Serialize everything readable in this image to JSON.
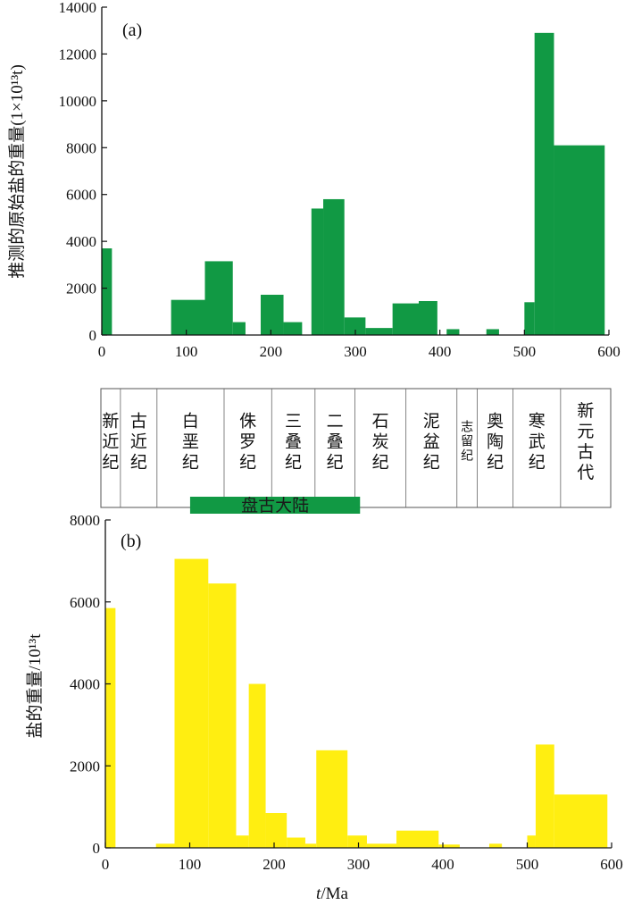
{
  "chart_data": [
    {
      "type": "bar",
      "panel_label": "(a)",
      "ylabel": "推测的原始盐的重量(1×10¹³t)",
      "xlabel": "",
      "xlim": [
        0,
        600
      ],
      "ylim": [
        0,
        14000
      ],
      "x_ticks": [
        0,
        100,
        200,
        300,
        400,
        500,
        600
      ],
      "y_ticks": [
        0,
        2000,
        4000,
        6000,
        8000,
        10000,
        12000,
        14000
      ],
      "color": "#119944",
      "grid": false,
      "bars": [
        {
          "x0": 0,
          "x1": 12,
          "value": 3700
        },
        {
          "x0": 82,
          "x1": 122,
          "value": 1500
        },
        {
          "x0": 122,
          "x1": 155,
          "value": 3150
        },
        {
          "x0": 155,
          "x1": 170,
          "value": 550
        },
        {
          "x0": 188,
          "x1": 215,
          "value": 1720
        },
        {
          "x0": 215,
          "x1": 237,
          "value": 550
        },
        {
          "x0": 248,
          "x1": 262,
          "value": 5400
        },
        {
          "x0": 262,
          "x1": 287,
          "value": 5800
        },
        {
          "x0": 287,
          "x1": 312,
          "value": 750
        },
        {
          "x0": 312,
          "x1": 344,
          "value": 300
        },
        {
          "x0": 344,
          "x1": 375,
          "value": 1350
        },
        {
          "x0": 375,
          "x1": 397,
          "value": 1450
        },
        {
          "x0": 408,
          "x1": 423,
          "value": 250
        },
        {
          "x0": 455,
          "x1": 470,
          "value": 250
        },
        {
          "x0": 500,
          "x1": 512,
          "value": 1400
        },
        {
          "x0": 512,
          "x1": 535,
          "value": 12900
        },
        {
          "x0": 535,
          "x1": 595,
          "value": 8100
        }
      ]
    },
    {
      "type": "bar",
      "panel_label": "(b)",
      "ylabel": "盐的重量/10¹³t",
      "xlabel": "t/Ma",
      "xlim": [
        0,
        600
      ],
      "ylim": [
        0,
        8000
      ],
      "x_ticks": [
        0,
        100,
        200,
        300,
        400,
        500,
        600
      ],
      "y_ticks": [
        0,
        2000,
        4000,
        6000,
        8000
      ],
      "color": "#ffee11",
      "grid": false,
      "bars": [
        {
          "x0": 0,
          "x1": 12,
          "value": 5850
        },
        {
          "x0": 60,
          "x1": 82,
          "value": 100
        },
        {
          "x0": 82,
          "x1": 122,
          "value": 7050
        },
        {
          "x0": 122,
          "x1": 155,
          "value": 6450
        },
        {
          "x0": 155,
          "x1": 170,
          "value": 300
        },
        {
          "x0": 170,
          "x1": 190,
          "value": 4000
        },
        {
          "x0": 190,
          "x1": 215,
          "value": 850
        },
        {
          "x0": 215,
          "x1": 237,
          "value": 250
        },
        {
          "x0": 237,
          "x1": 250,
          "value": 100
        },
        {
          "x0": 250,
          "x1": 287,
          "value": 2380
        },
        {
          "x0": 287,
          "x1": 310,
          "value": 300
        },
        {
          "x0": 310,
          "x1": 345,
          "value": 100
        },
        {
          "x0": 345,
          "x1": 395,
          "value": 420
        },
        {
          "x0": 395,
          "x1": 420,
          "value": 80
        },
        {
          "x0": 455,
          "x1": 470,
          "value": 100
        },
        {
          "x0": 500,
          "x1": 510,
          "value": 300
        },
        {
          "x0": 510,
          "x1": 532,
          "value": 2520
        },
        {
          "x0": 532,
          "x1": 595,
          "value": 1300
        }
      ]
    }
  ],
  "periods": [
    {
      "label": "新近纪",
      "x0": 0,
      "x1": 23
    },
    {
      "label": "古近纪",
      "x0": 23,
      "x1": 66
    },
    {
      "label": "白垩纪",
      "x0": 66,
      "x1": 145
    },
    {
      "label": "侏罗纪",
      "x0": 145,
      "x1": 201
    },
    {
      "label": "三叠纪",
      "x0": 201,
      "x1": 252
    },
    {
      "label": "二叠纪",
      "x0": 252,
      "x1": 299
    },
    {
      "label": "石炭纪",
      "x0": 299,
      "x1": 359
    },
    {
      "label": "泥盆纪",
      "x0": 359,
      "x1": 419
    },
    {
      "label": "志留纪",
      "x0": 419,
      "x1": 443,
      "small": true
    },
    {
      "label": "奥陶纪",
      "x0": 443,
      "x1": 485
    },
    {
      "label": "寒武纪",
      "x0": 485,
      "x1": 541
    },
    {
      "label": "新元古代",
      "x0": 541,
      "x1": 600
    }
  ],
  "pangaea": {
    "label": "盘古大陆",
    "x0": 105,
    "x1": 305,
    "color": "#119944"
  }
}
